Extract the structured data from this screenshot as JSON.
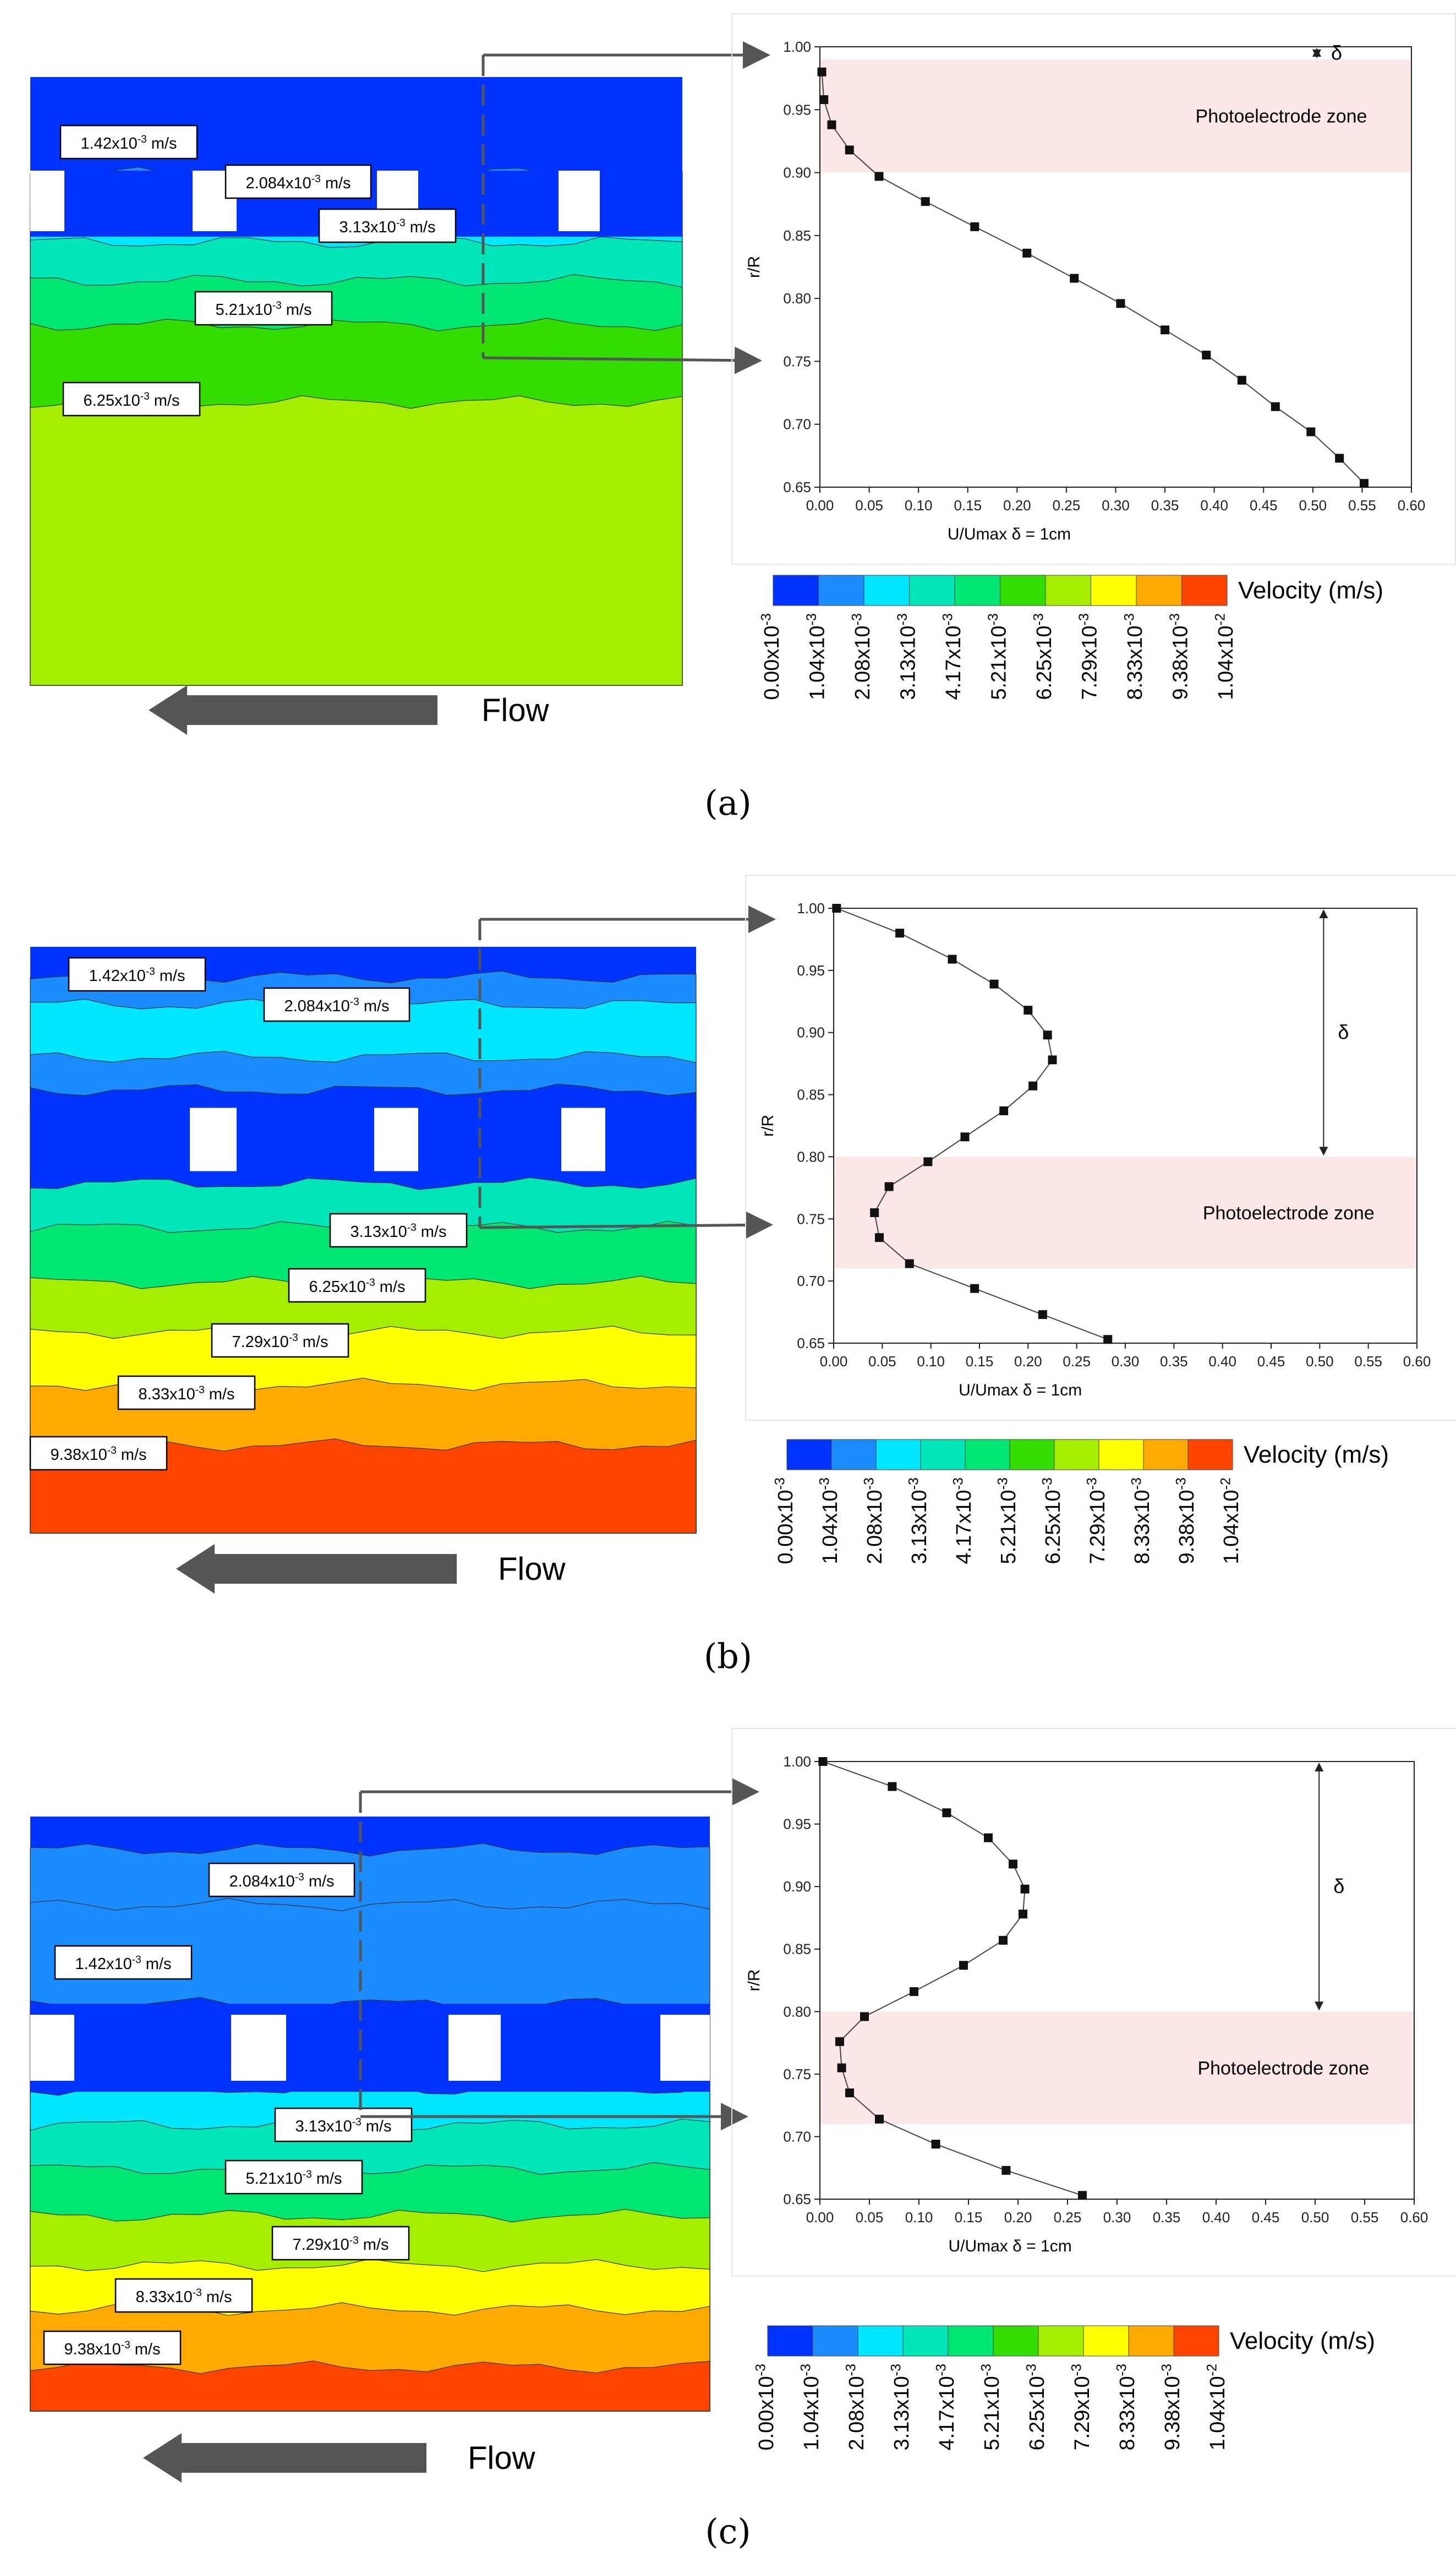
{
  "figure": {
    "panels": [
      {
        "id": "a",
        "tag": "(a)",
        "contour": {
          "velocity_labels": [
            "1.42x10-3 m/s",
            "2.084x10-3 m/s",
            "3.13x10-3 m/s",
            "5.21x10-3 m/s",
            "6.25x10-3 m/s"
          ],
          "flow_label": "Flow"
        },
        "legend": {
          "title": "Velocity (m/s)",
          "colors": [
            "#0033ff",
            "#1a8cff",
            "#00e6ff",
            "#00e6b8",
            "#00e673",
            "#33dd00",
            "#a6ee00",
            "#ffff00",
            "#ffaa00",
            "#ff4400"
          ],
          "ticks": [
            "0.00x10-3",
            "1.04x10-3",
            "2.08x10-3",
            "3.13x10-3",
            "4.17x10-3",
            "5.21x10-3",
            "6.25x10-3",
            "7.29x10-3",
            "8.33x10-3",
            "9.38x10-3",
            "1.04x10-2"
          ]
        },
        "chart_data": {
          "type": "scatter",
          "xlabel": "U/Umax δ = 1cm",
          "ylabel": "r/R",
          "xlim": [
            0.0,
            0.6
          ],
          "ylim": [
            0.65,
            1.0
          ],
          "x_ticks": [
            "0.00",
            "0.05",
            "0.10",
            "0.15",
            "0.20",
            "0.25",
            "0.30",
            "0.35",
            "0.40",
            "0.45",
            "0.50",
            "0.55",
            "0.60"
          ],
          "y_ticks": [
            "0.65",
            "0.70",
            "0.75",
            "0.80",
            "0.85",
            "0.90",
            "0.95",
            "1.00"
          ],
          "x": [
            0.002,
            0.004,
            0.012,
            0.03,
            0.06,
            0.107,
            0.157,
            0.21,
            0.258,
            0.305,
            0.35,
            0.392,
            0.428,
            0.462,
            0.498,
            0.527,
            0.552
          ],
          "y": [
            0.98,
            0.958,
            0.938,
            0.918,
            0.897,
            0.877,
            0.857,
            0.836,
            0.816,
            0.796,
            0.775,
            0.755,
            0.735,
            0.714,
            0.694,
            0.673,
            0.653
          ],
          "zone_label": "Photoelectrode zone",
          "zone_range": [
            0.9,
            0.99
          ],
          "delta_symbol": "δ",
          "delta_range": [
            0.99,
            1.0
          ]
        }
      },
      {
        "id": "b",
        "tag": "(b)",
        "contour": {
          "velocity_labels": [
            "1.42x10-3 m/s",
            "2.084x10-3 m/s",
            "3.13x10-3 m/s",
            "6.25x10-3 m/s",
            "7.29x10-3 m/s",
            "8.33x10-3 m/s",
            "9.38x10-3 m/s"
          ],
          "flow_label": "Flow"
        },
        "legend": {
          "title": "Velocity (m/s)",
          "colors": [
            "#0033ff",
            "#1a8cff",
            "#00e6ff",
            "#00e6b8",
            "#00e673",
            "#33dd00",
            "#a6ee00",
            "#ffff00",
            "#ffaa00",
            "#ff4400"
          ],
          "ticks": [
            "0.00x10-3",
            "1.04x10-3",
            "2.08x10-3",
            "3.13x10-3",
            "4.17x10-3",
            "5.21x10-3",
            "6.25x10-3",
            "7.29x10-3",
            "8.33x10-3",
            "9.38x10-3",
            "1.04x10-2"
          ]
        },
        "chart_data": {
          "type": "scatter",
          "xlabel": "U/Umax δ = 1cm",
          "ylabel": "r/R",
          "xlim": [
            0.0,
            0.6
          ],
          "ylim": [
            0.65,
            1.0
          ],
          "x_ticks": [
            "0.00",
            "0.05",
            "0.10",
            "0.15",
            "0.20",
            "0.25",
            "0.30",
            "0.35",
            "0.40",
            "0.45",
            "0.50",
            "0.55",
            "0.60"
          ],
          "y_ticks": [
            "0.65",
            "0.70",
            "0.75",
            "0.80",
            "0.85",
            "0.90",
            "0.95",
            "1.00"
          ],
          "x": [
            0.003,
            0.068,
            0.122,
            0.165,
            0.2,
            0.22,
            0.225,
            0.205,
            0.175,
            0.135,
            0.097,
            0.057,
            0.042,
            0.047,
            0.078,
            0.145,
            0.215,
            0.282
          ],
          "y": [
            1.0,
            0.98,
            0.959,
            0.939,
            0.918,
            0.898,
            0.878,
            0.857,
            0.837,
            0.816,
            0.796,
            0.776,
            0.755,
            0.735,
            0.714,
            0.694,
            0.673,
            0.653
          ],
          "zone_label": "Photoelectrode zone",
          "zone_range": [
            0.71,
            0.8
          ],
          "delta_symbol": "δ",
          "delta_range": [
            0.8,
            1.0
          ]
        }
      },
      {
        "id": "c",
        "tag": "(c)",
        "contour": {
          "velocity_labels": [
            "2.084x10-3 m/s",
            "1.42x10-3 m/s",
            "3.13x10-3 m/s",
            "5.21x10-3 m/s",
            "7.29x10-3 m/s",
            "8.33x10-3 m/s",
            "9.38x10-3 m/s"
          ],
          "flow_label": "Flow"
        },
        "legend": {
          "title": "Velocity (m/s)",
          "colors": [
            "#0033ff",
            "#1a8cff",
            "#00e6ff",
            "#00e6b8",
            "#00e673",
            "#33dd00",
            "#a6ee00",
            "#ffff00",
            "#ffaa00",
            "#ff4400"
          ],
          "ticks": [
            "0.00x10-3",
            "1.04x10-3",
            "2.08x10-3",
            "3.13x10-3",
            "4.17x10-3",
            "5.21x10-3",
            "6.25x10-3",
            "7.29x10-3",
            "8.33x10-3",
            "9.38x10-3",
            "1.04x10-2"
          ]
        },
        "chart_data": {
          "type": "scatter",
          "xlabel": "U/Umax δ = 1cm",
          "ylabel": "r/R",
          "xlim": [
            0.0,
            0.6
          ],
          "ylim": [
            0.65,
            1.0
          ],
          "x_ticks": [
            "0.00",
            "0.05",
            "0.10",
            "0.15",
            "0.20",
            "0.25",
            "0.30",
            "0.35",
            "0.40",
            "0.45",
            "0.50",
            "0.55",
            "0.60"
          ],
          "y_ticks": [
            "0.65",
            "0.70",
            "0.75",
            "0.80",
            "0.85",
            "0.90",
            "0.95",
            "1.00"
          ],
          "x": [
            0.003,
            0.073,
            0.128,
            0.17,
            0.195,
            0.207,
            0.205,
            0.185,
            0.145,
            0.095,
            0.045,
            0.02,
            0.022,
            0.03,
            0.06,
            0.117,
            0.188,
            0.265
          ],
          "y": [
            1.0,
            0.98,
            0.959,
            0.939,
            0.918,
            0.898,
            0.878,
            0.857,
            0.837,
            0.816,
            0.796,
            0.776,
            0.755,
            0.735,
            0.714,
            0.694,
            0.673,
            0.653
          ],
          "zone_label": "Photoelectrode zone",
          "zone_range": [
            0.71,
            0.8
          ],
          "delta_symbol": "δ",
          "delta_range": [
            0.8,
            1.0
          ]
        }
      }
    ]
  }
}
